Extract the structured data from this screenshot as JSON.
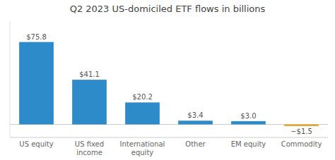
{
  "chart_data": {
    "type": "bar",
    "title": "Q2 2023 US-domiciled ETF flows in billions",
    "categories": [
      "US equity",
      "US fixed\nincome",
      "International\nequity",
      "Other",
      "EM equity",
      "Commodity"
    ],
    "values": [
      75.8,
      41.1,
      20.2,
      3.4,
      3.0,
      -1.5
    ],
    "value_labels": [
      "$75.8",
      "$41.1",
      "$20.2",
      "$3.4",
      "$3.0",
      "−$1.5"
    ],
    "colors": [
      "#2e8bc9",
      "#2e8bc9",
      "#2e8bc9",
      "#2e8bc9",
      "#2e8bc9",
      "#e8a020"
    ],
    "ylim": [
      -12,
      95
    ],
    "data_labels": true,
    "tick_labels": "x",
    "grid": false
  }
}
